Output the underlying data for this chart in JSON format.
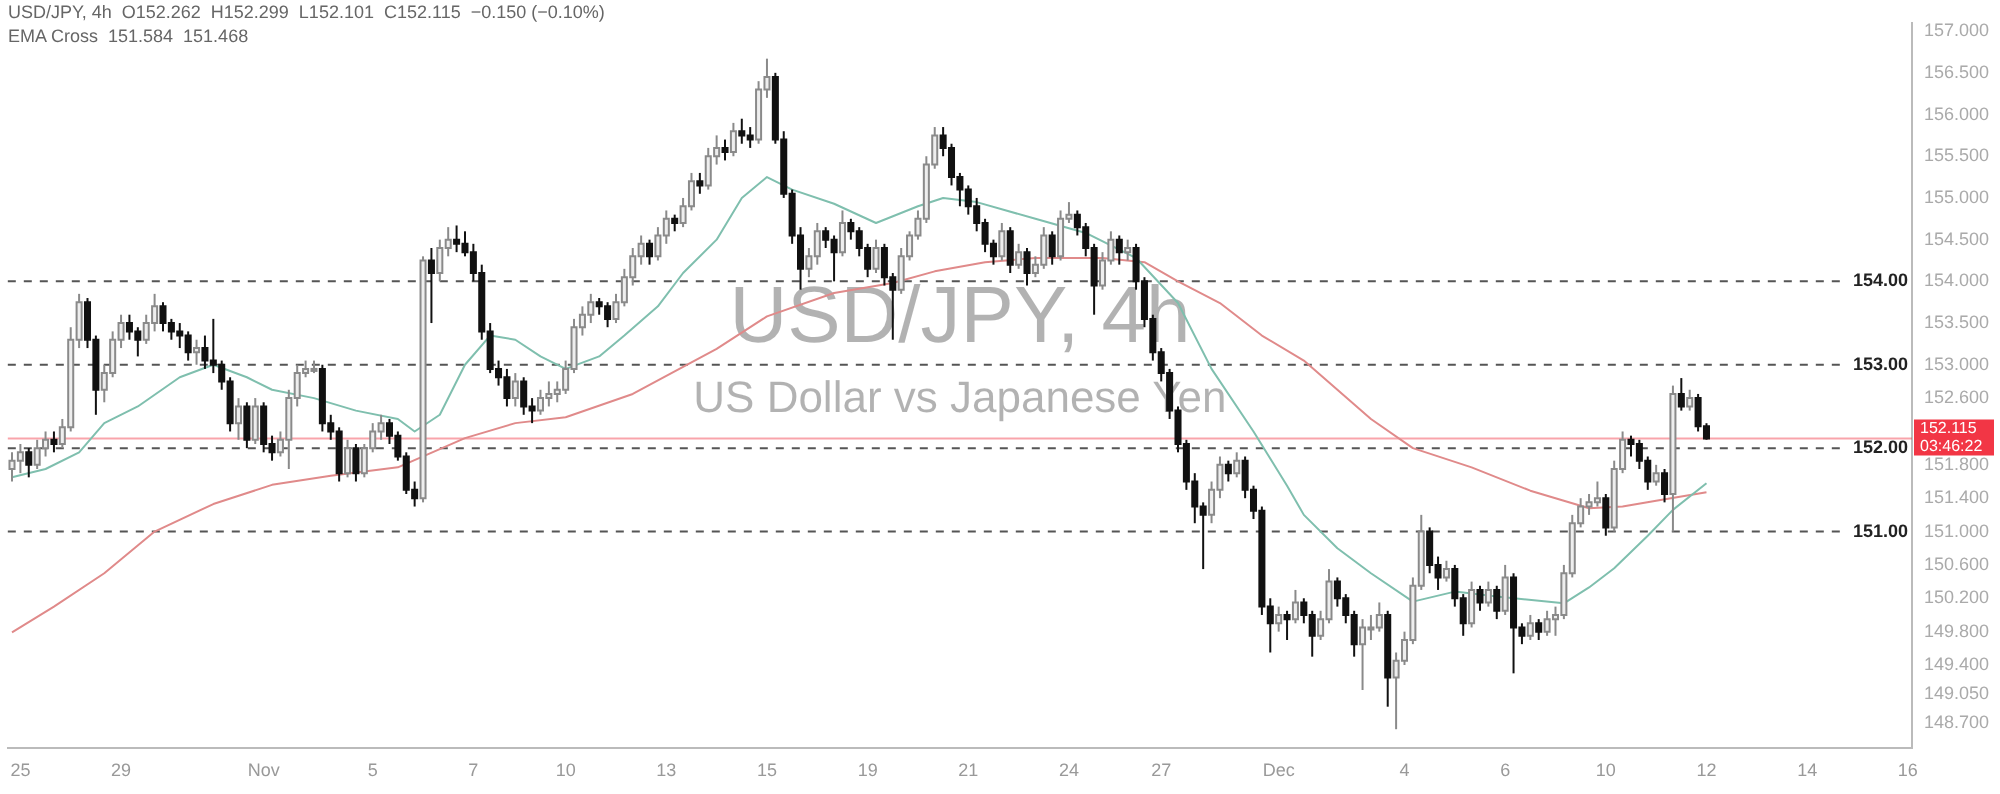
{
  "chart_data": {
    "type": "candlestick",
    "title": "USD/JPY, 4h",
    "subtitle": "US Dollar vs Japanese Yen",
    "annotations": [
      "USD/JPY, 4h  O152.262  H152.299  L152.101  C152.115  −0.150 (−0.10%)",
      "EMA Cross  151.584  151.468",
      "03:46:22"
    ],
    "categories": [
      null,
      "25",
      null,
      null,
      null,
      null,
      null,
      null,
      null,
      null,
      null,
      null,
      null,
      "29",
      null,
      null,
      null,
      null,
      null,
      null,
      null,
      null,
      null,
      null,
      null,
      null,
      null,
      null,
      null,
      null,
      "Nov",
      null,
      null,
      null,
      null,
      null,
      null,
      null,
      null,
      null,
      null,
      null,
      null,
      "5",
      null,
      null,
      null,
      null,
      null,
      null,
      null,
      null,
      null,
      null,
      null,
      "7",
      null,
      null,
      null,
      null,
      null,
      null,
      null,
      null,
      null,
      null,
      "10",
      null,
      null,
      null,
      null,
      null,
      null,
      null,
      null,
      null,
      null,
      null,
      "13",
      null,
      null,
      null,
      null,
      null,
      null,
      null,
      null,
      null,
      null,
      null,
      "15",
      null,
      null,
      null,
      null,
      null,
      null,
      null,
      null,
      null,
      null,
      null,
      "19",
      null,
      null,
      null,
      null,
      null,
      null,
      null,
      null,
      null,
      null,
      null,
      "21",
      null,
      null,
      null,
      null,
      null,
      null,
      null,
      null,
      null,
      null,
      null,
      "24",
      null,
      null,
      null,
      null,
      null,
      null,
      null,
      null,
      null,
      null,
      "27",
      null,
      null,
      null,
      null,
      null,
      null,
      null,
      null,
      null,
      null,
      null,
      null,
      null,
      "Dec",
      null,
      null,
      null,
      null,
      null,
      null,
      null,
      null,
      null,
      null,
      null,
      null,
      null,
      null,
      "4",
      null,
      null,
      null,
      null,
      null,
      null,
      null,
      null,
      null,
      null,
      null,
      "6",
      null,
      null,
      null,
      null,
      null,
      null,
      null,
      null,
      null,
      null,
      null,
      "10",
      null,
      null,
      null,
      null,
      null,
      null,
      null,
      null,
      null,
      null,
      null,
      "12",
      null,
      null,
      null,
      null,
      null,
      null,
      null,
      null,
      null,
      null,
      null,
      "14",
      null,
      null,
      null,
      null,
      null,
      null,
      null,
      null,
      null,
      null,
      null,
      "16"
    ],
    "ohlc": [
      [
        151.75,
        151.95,
        151.6,
        151.85
      ],
      [
        151.85,
        152.05,
        151.7,
        151.95
      ],
      [
        151.95,
        152.0,
        151.65,
        151.8
      ],
      [
        151.8,
        152.1,
        151.75,
        152.0
      ],
      [
        152.0,
        152.2,
        151.9,
        152.1
      ],
      [
        152.1,
        152.2,
        151.95,
        152.05
      ],
      [
        152.05,
        152.35,
        152.0,
        152.25
      ],
      [
        152.25,
        153.45,
        152.2,
        153.3
      ],
      [
        153.3,
        153.85,
        153.2,
        153.75
      ],
      [
        153.75,
        153.8,
        153.2,
        153.3
      ],
      [
        153.3,
        153.35,
        152.4,
        152.7
      ],
      [
        152.7,
        153.0,
        152.55,
        152.9
      ],
      [
        152.9,
        153.4,
        152.85,
        153.3
      ],
      [
        153.3,
        153.6,
        153.2,
        153.5
      ],
      [
        153.5,
        153.6,
        153.3,
        153.4
      ],
      [
        153.4,
        153.45,
        153.1,
        153.3
      ],
      [
        153.3,
        153.6,
        153.25,
        153.5
      ],
      [
        153.5,
        153.85,
        153.4,
        153.7
      ],
      [
        153.7,
        153.75,
        153.4,
        153.5
      ],
      [
        153.5,
        153.55,
        153.3,
        153.4
      ],
      [
        153.4,
        153.5,
        153.2,
        153.35
      ],
      [
        153.35,
        153.4,
        153.05,
        153.15
      ],
      [
        153.15,
        153.3,
        153.0,
        153.2
      ],
      [
        153.2,
        153.35,
        152.95,
        153.05
      ],
      [
        153.05,
        153.55,
        152.9,
        153.0
      ],
      [
        153.0,
        153.05,
        152.7,
        152.8
      ],
      [
        152.8,
        152.85,
        152.2,
        152.3
      ],
      [
        152.3,
        152.6,
        152.1,
        152.5
      ],
      [
        152.5,
        152.55,
        152.0,
        152.1
      ],
      [
        152.1,
        152.6,
        152.05,
        152.5
      ],
      [
        152.5,
        152.55,
        151.95,
        152.05
      ],
      [
        152.05,
        152.15,
        151.85,
        151.95
      ],
      [
        151.95,
        152.2,
        151.9,
        152.1
      ],
      [
        152.1,
        152.7,
        151.75,
        152.6
      ],
      [
        152.6,
        153.0,
        152.5,
        152.9
      ],
      [
        152.9,
        153.05,
        152.85,
        152.95
      ],
      [
        152.95,
        153.05,
        152.9,
        152.95
      ],
      [
        152.95,
        153.0,
        152.2,
        152.3
      ],
      [
        152.3,
        152.4,
        152.1,
        152.2
      ],
      [
        152.2,
        152.25,
        151.6,
        151.7
      ],
      [
        151.7,
        152.1,
        151.65,
        152.0
      ],
      [
        152.0,
        152.05,
        151.6,
        151.7
      ],
      [
        151.7,
        152.05,
        151.65,
        152.0
      ],
      [
        152.0,
        152.3,
        151.95,
        152.2
      ],
      [
        152.2,
        152.4,
        152.1,
        152.3
      ],
      [
        152.3,
        152.35,
        152.05,
        152.15
      ],
      [
        152.15,
        152.2,
        151.85,
        151.9
      ],
      [
        151.9,
        151.95,
        151.45,
        151.5
      ],
      [
        151.5,
        151.6,
        151.3,
        151.4
      ],
      [
        151.4,
        154.3,
        151.35,
        154.25
      ],
      [
        154.25,
        154.4,
        153.5,
        154.1
      ],
      [
        154.1,
        154.5,
        154.0,
        154.4
      ],
      [
        154.4,
        154.65,
        154.3,
        154.5
      ],
      [
        154.5,
        154.67,
        154.35,
        154.45
      ],
      [
        154.45,
        154.6,
        154.3,
        154.35
      ],
      [
        154.35,
        154.45,
        154.0,
        154.1
      ],
      [
        154.1,
        154.2,
        153.3,
        153.4
      ],
      [
        153.4,
        153.5,
        152.9,
        152.95
      ],
      [
        152.95,
        153.05,
        152.75,
        152.85
      ],
      [
        152.85,
        152.95,
        152.5,
        152.6
      ],
      [
        152.6,
        152.9,
        152.5,
        152.8
      ],
      [
        152.8,
        152.85,
        152.4,
        152.5
      ],
      [
        152.5,
        152.6,
        152.3,
        152.45
      ],
      [
        152.45,
        152.7,
        152.4,
        152.6
      ],
      [
        152.6,
        152.8,
        152.5,
        152.65
      ],
      [
        152.65,
        152.8,
        152.55,
        152.7
      ],
      [
        152.7,
        153.05,
        152.65,
        152.95
      ],
      [
        152.95,
        153.55,
        152.9,
        153.45
      ],
      [
        153.45,
        153.7,
        153.35,
        153.6
      ],
      [
        153.6,
        153.85,
        153.5,
        153.75
      ],
      [
        153.75,
        153.8,
        153.6,
        153.7
      ],
      [
        153.7,
        153.75,
        153.45,
        153.55
      ],
      [
        153.55,
        153.85,
        153.5,
        153.75
      ],
      [
        153.75,
        154.15,
        153.7,
        154.05
      ],
      [
        154.05,
        154.4,
        153.95,
        154.3
      ],
      [
        154.3,
        154.55,
        154.2,
        154.45
      ],
      [
        154.45,
        154.5,
        154.2,
        154.3
      ],
      [
        154.3,
        154.65,
        154.25,
        154.55
      ],
      [
        154.55,
        154.85,
        154.45,
        154.75
      ],
      [
        154.75,
        154.8,
        154.6,
        154.7
      ],
      [
        154.7,
        155.0,
        154.65,
        154.9
      ],
      [
        154.9,
        155.3,
        154.85,
        155.2
      ],
      [
        155.2,
        155.3,
        155.05,
        155.15
      ],
      [
        155.15,
        155.6,
        155.1,
        155.5
      ],
      [
        155.5,
        155.75,
        155.4,
        155.6
      ],
      [
        155.6,
        155.7,
        155.45,
        155.55
      ],
      [
        155.55,
        155.9,
        155.5,
        155.8
      ],
      [
        155.8,
        155.95,
        155.65,
        155.75
      ],
      [
        155.75,
        155.85,
        155.6,
        155.7
      ],
      [
        155.7,
        156.4,
        155.65,
        156.3
      ],
      [
        156.3,
        156.67,
        156.2,
        156.45
      ],
      [
        156.45,
        156.5,
        155.65,
        155.7
      ],
      [
        155.7,
        155.8,
        155.0,
        155.05
      ],
      [
        155.05,
        155.1,
        154.45,
        154.55
      ],
      [
        154.55,
        154.65,
        153.9,
        154.15
      ],
      [
        154.15,
        154.4,
        154.05,
        154.3
      ],
      [
        154.3,
        154.7,
        154.2,
        154.6
      ],
      [
        154.6,
        154.65,
        154.4,
        154.5
      ],
      [
        154.5,
        154.55,
        154.0,
        154.35
      ],
      [
        154.35,
        154.85,
        154.3,
        154.7
      ],
      [
        154.7,
        154.75,
        154.5,
        154.6
      ],
      [
        154.6,
        154.65,
        154.3,
        154.4
      ],
      [
        154.4,
        154.45,
        154.05,
        154.15
      ],
      [
        154.15,
        154.5,
        154.1,
        154.4
      ],
      [
        154.4,
        154.45,
        153.95,
        154.05
      ],
      [
        154.05,
        154.1,
        153.3,
        153.9
      ],
      [
        153.9,
        154.4,
        153.85,
        154.3
      ],
      [
        154.3,
        154.6,
        154.25,
        154.55
      ],
      [
        154.55,
        154.85,
        154.5,
        154.75
      ],
      [
        154.75,
        155.5,
        154.7,
        155.4
      ],
      [
        155.4,
        155.85,
        155.35,
        155.75
      ],
      [
        155.75,
        155.85,
        155.5,
        155.6
      ],
      [
        155.6,
        155.65,
        155.15,
        155.25
      ],
      [
        155.25,
        155.3,
        154.9,
        155.1
      ],
      [
        155.1,
        155.15,
        154.8,
        154.9
      ],
      [
        154.9,
        155.0,
        154.6,
        154.7
      ],
      [
        154.7,
        154.75,
        154.35,
        154.45
      ],
      [
        154.45,
        154.5,
        154.2,
        154.3
      ],
      [
        154.3,
        154.7,
        154.25,
        154.6
      ],
      [
        154.6,
        154.65,
        154.1,
        154.2
      ],
      [
        154.2,
        154.45,
        154.15,
        154.35
      ],
      [
        154.35,
        154.4,
        153.95,
        154.1
      ],
      [
        154.1,
        154.3,
        154.05,
        154.2
      ],
      [
        154.2,
        154.65,
        154.15,
        154.55
      ],
      [
        154.55,
        154.6,
        154.2,
        154.3
      ],
      [
        154.3,
        154.85,
        154.25,
        154.75
      ],
      [
        154.75,
        154.95,
        154.7,
        154.8
      ],
      [
        154.8,
        154.85,
        154.55,
        154.65
      ],
      [
        154.65,
        154.7,
        154.3,
        154.4
      ],
      [
        154.4,
        154.45,
        153.6,
        153.95
      ],
      [
        153.95,
        154.35,
        153.9,
        154.25
      ],
      [
        154.25,
        154.6,
        154.2,
        154.5
      ],
      [
        154.5,
        154.55,
        154.2,
        154.35
      ],
      [
        154.35,
        154.5,
        154.25,
        154.4
      ],
      [
        154.4,
        154.45,
        153.9,
        154.0
      ],
      [
        154.0,
        154.05,
        153.45,
        153.55
      ],
      [
        153.55,
        153.6,
        153.05,
        153.15
      ],
      [
        153.15,
        153.2,
        152.8,
        152.9
      ],
      [
        152.9,
        152.95,
        152.35,
        152.45
      ],
      [
        152.45,
        152.5,
        151.95,
        152.05
      ],
      [
        152.05,
        152.1,
        151.5,
        151.6
      ],
      [
        151.6,
        151.7,
        151.1,
        151.3
      ],
      [
        151.3,
        151.35,
        150.55,
        151.2
      ],
      [
        151.2,
        151.6,
        151.1,
        151.5
      ],
      [
        151.5,
        151.9,
        151.4,
        151.8
      ],
      [
        151.8,
        151.85,
        151.6,
        151.7
      ],
      [
        151.7,
        151.95,
        151.65,
        151.85
      ],
      [
        151.85,
        151.9,
        151.4,
        151.5
      ],
      [
        151.5,
        151.55,
        151.15,
        151.25
      ],
      [
        151.25,
        151.3,
        150.0,
        150.1
      ],
      [
        150.1,
        150.2,
        149.55,
        149.9
      ],
      [
        149.9,
        150.1,
        149.8,
        150.0
      ],
      [
        150.0,
        150.05,
        149.7,
        149.95
      ],
      [
        149.95,
        150.3,
        149.9,
        150.15
      ],
      [
        150.15,
        150.2,
        149.9,
        150.0
      ],
      [
        150.0,
        150.05,
        149.5,
        149.75
      ],
      [
        149.75,
        150.05,
        149.7,
        149.95
      ],
      [
        149.95,
        150.55,
        149.9,
        150.4
      ],
      [
        150.4,
        150.45,
        150.1,
        150.2
      ],
      [
        150.2,
        150.25,
        149.9,
        150.0
      ],
      [
        150.0,
        150.05,
        149.5,
        149.65
      ],
      [
        149.65,
        149.95,
        149.1,
        149.85
      ],
      [
        149.85,
        150.0,
        149.7,
        149.85
      ],
      [
        149.85,
        150.15,
        149.8,
        150.0
      ],
      [
        150.0,
        150.05,
        148.9,
        149.25
      ],
      [
        149.25,
        149.55,
        148.63,
        149.45
      ],
      [
        149.45,
        149.8,
        149.4,
        149.7
      ],
      [
        149.7,
        150.45,
        149.65,
        150.35
      ],
      [
        150.35,
        151.2,
        150.3,
        151.0
      ],
      [
        151.0,
        151.05,
        150.5,
        150.6
      ],
      [
        150.6,
        150.7,
        150.3,
        150.45
      ],
      [
        150.45,
        150.65,
        150.4,
        150.55
      ],
      [
        150.55,
        150.6,
        150.1,
        150.2
      ],
      [
        150.2,
        150.25,
        149.75,
        149.9
      ],
      [
        149.9,
        150.4,
        149.85,
        150.3
      ],
      [
        150.3,
        150.35,
        150.05,
        150.15
      ],
      [
        150.15,
        150.4,
        150.1,
        150.3
      ],
      [
        150.3,
        150.35,
        149.95,
        150.05
      ],
      [
        150.05,
        150.6,
        150.0,
        150.45
      ],
      [
        150.45,
        150.5,
        149.3,
        149.85
      ],
      [
        149.85,
        149.9,
        149.65,
        149.75
      ],
      [
        149.75,
        150.0,
        149.7,
        149.9
      ],
      [
        149.9,
        149.95,
        149.7,
        149.8
      ],
      [
        149.8,
        150.05,
        149.75,
        149.95
      ],
      [
        149.95,
        150.1,
        149.75,
        150.0
      ],
      [
        150.0,
        150.6,
        149.95,
        150.5
      ],
      [
        150.5,
        151.2,
        150.45,
        151.1
      ],
      [
        151.1,
        151.4,
        151.05,
        151.3
      ],
      [
        151.3,
        151.45,
        151.2,
        151.35
      ],
      [
        151.35,
        151.6,
        151.3,
        151.4
      ],
      [
        151.4,
        151.45,
        150.95,
        151.05
      ],
      [
        151.05,
        151.85,
        151.0,
        151.75
      ],
      [
        151.75,
        152.2,
        151.7,
        152.1
      ],
      [
        152.1,
        152.15,
        151.9,
        152.05
      ],
      [
        152.05,
        152.1,
        151.75,
        151.85
      ],
      [
        151.85,
        151.9,
        151.5,
        151.6
      ],
      [
        151.6,
        151.8,
        151.55,
        151.7
      ],
      [
        151.7,
        151.75,
        151.35,
        151.45
      ],
      [
        151.45,
        152.75,
        151.0,
        152.65
      ],
      [
        152.65,
        152.84,
        152.45,
        152.5
      ],
      [
        152.5,
        152.7,
        152.45,
        152.6
      ],
      [
        152.6,
        152.65,
        152.2,
        152.262
      ],
      [
        152.262,
        152.299,
        152.101,
        152.115
      ],
      null,
      null,
      null,
      null,
      null,
      null,
      null,
      null,
      null,
      null,
      null,
      null,
      null,
      null,
      null,
      null,
      null,
      null,
      null,
      null,
      null,
      null,
      null,
      null
    ],
    "series": [
      {
        "type": "line",
        "color": "#7fbfae",
        "values": [
          151.65,
          null,
          null,
          null,
          151.75,
          null,
          null,
          null,
          151.95,
          null,
          null,
          152.3,
          null,
          null,
          null,
          152.5,
          null,
          null,
          null,
          null,
          152.85,
          null,
          null,
          null,
          153.0,
          null,
          null,
          null,
          152.85,
          null,
          null,
          152.7,
          null,
          null,
          null,
          null,
          152.6,
          null,
          null,
          null,
          null,
          152.45,
          null,
          null,
          null,
          null,
          152.35,
          null,
          152.2,
          null,
          null,
          152.4,
          null,
          null,
          153.0,
          null,
          null,
          153.35,
          null,
          null,
          153.3,
          null,
          null,
          153.1,
          null,
          null,
          152.95,
          null,
          null,
          null,
          153.1,
          null,
          null,
          153.35,
          null,
          null,
          null,
          153.7,
          null,
          null,
          154.1,
          null,
          null,
          null,
          154.5,
          null,
          null,
          155.0,
          null,
          null,
          155.25,
          null,
          null,
          155.1,
          null,
          null,
          null,
          null,
          154.93,
          null,
          null,
          null,
          null,
          154.7,
          null,
          null,
          null,
          null,
          154.9,
          null,
          null,
          155.0,
          null,
          null,
          null,
          154.95,
          null,
          null,
          null,
          null,
          null,
          null,
          154.75,
          null,
          null,
          null,
          null,
          null,
          154.58,
          null,
          null,
          null,
          null,
          null,
          154.28,
          null,
          null,
          null,
          null,
          153.74,
          null,
          null,
          null,
          152.95,
          null,
          null,
          null,
          null,
          152.2,
          null,
          null,
          null,
          151.55,
          null,
          151.2,
          null,
          null,
          null,
          150.8,
          null,
          null,
          null,
          150.5,
          null,
          null,
          null,
          null,
          150.16,
          null,
          null,
          null,
          null,
          150.28,
          null,
          null,
          null,
          null,
          150.22,
          null,
          null,
          null,
          null,
          null,
          null,
          null,
          150.14,
          null,
          null,
          150.33,
          null,
          null,
          150.56,
          null,
          null,
          null,
          150.95,
          null,
          null,
          151.26,
          null,
          null,
          null,
          151.58,
          null,
          null,
          null,
          null,
          null,
          null,
          null,
          null,
          null,
          null,
          null,
          null,
          null,
          null,
          null,
          null,
          null,
          null,
          null,
          null,
          null,
          null,
          null,
          null
        ]
      },
      {
        "type": "line",
        "color": "#e08a8a",
        "values": [
          149.79,
          null,
          null,
          null,
          null,
          150.1,
          null,
          null,
          null,
          null,
          null,
          150.5,
          null,
          null,
          null,
          null,
          null,
          151.0,
          null,
          null,
          null,
          null,
          null,
          null,
          151.33,
          null,
          null,
          null,
          null,
          null,
          null,
          151.56,
          null,
          null,
          null,
          null,
          null,
          null,
          151.67,
          null,
          null,
          null,
          null,
          null,
          null,
          null,
          151.77,
          null,
          null,
          null,
          null,
          null,
          null,
          null,
          152.12,
          null,
          null,
          null,
          null,
          null,
          152.3,
          null,
          null,
          null,
          null,
          null,
          152.37,
          null,
          null,
          null,
          null,
          null,
          null,
          null,
          152.65,
          null,
          null,
          null,
          null,
          null,
          null,
          null,
          null,
          null,
          153.19,
          null,
          null,
          null,
          null,
          null,
          153.58,
          null,
          null,
          null,
          null,
          null,
          null,
          null,
          153.86,
          null,
          null,
          null,
          null,
          null,
          null,
          153.98,
          null,
          null,
          null,
          null,
          154.12,
          null,
          null,
          null,
          null,
          null,
          154.23,
          null,
          null,
          null,
          null,
          null,
          154.28,
          null,
          null,
          null,
          null,
          null,
          null,
          null,
          154.28,
          null,
          null,
          null,
          null,
          154.23,
          null,
          null,
          null,
          154.0,
          null,
          null,
          null,
          null,
          153.74,
          null,
          null,
          null,
          null,
          153.35,
          null,
          null,
          null,
          null,
          153.05,
          null,
          null,
          null,
          null,
          null,
          null,
          null,
          152.35,
          null,
          null,
          null,
          null,
          152.0,
          null,
          null,
          null,
          null,
          null,
          null,
          151.77,
          null,
          null,
          null,
          null,
          null,
          null,
          151.49,
          null,
          null,
          null,
          null,
          null,
          null,
          151.28,
          null,
          null,
          null,
          151.3,
          null,
          null,
          null,
          151.37,
          null,
          null,
          null,
          null,
          null,
          151.47,
          null,
          null,
          null,
          null,
          null,
          null,
          null,
          null,
          null,
          null,
          null,
          null,
          null,
          null,
          null,
          null,
          null,
          null,
          null,
          null,
          null,
          null,
          null,
          null
        ]
      }
    ],
    "ylim": [
      148.4,
      157.1
    ],
    "yticks": [
      {
        "value": 157,
        "label": "157.000"
      },
      {
        "value": 156.5,
        "label": "156.500"
      },
      {
        "value": 156,
        "label": "156.000"
      },
      {
        "value": 155.5,
        "label": "155.500"
      },
      {
        "value": 155,
        "label": "155.000"
      },
      {
        "value": 154.5,
        "label": "154.500"
      },
      {
        "value": 154,
        "label": "154.000"
      },
      {
        "value": 153.5,
        "label": "153.500"
      },
      {
        "value": 153,
        "label": "153.000"
      },
      {
        "value": 152.6,
        "label": "152.600"
      },
      {
        "value": 151.8,
        "label": "151.800"
      },
      {
        "value": 151.4,
        "label": "151.400"
      },
      {
        "value": 151,
        "label": "151.000"
      },
      {
        "value": 150.6,
        "label": "150.600"
      },
      {
        "value": 150.2,
        "label": "150.200"
      },
      {
        "value": 149.8,
        "label": "149.800"
      },
      {
        "value": 149.4,
        "label": "149.400"
      },
      {
        "value": 149.05,
        "label": "149.050"
      },
      {
        "value": 148.7,
        "label": "148.700"
      }
    ],
    "ref_lines": [
      {
        "axis": "y",
        "value": 154,
        "label": "154.00",
        "color": "#555555",
        "line_style": "dashed"
      },
      {
        "axis": "y",
        "value": 153,
        "label": "153.00",
        "color": "#555555",
        "line_style": "dashed"
      },
      {
        "axis": "y",
        "value": 152,
        "label": "152.00",
        "color": "#555555",
        "line_style": "dashed"
      },
      {
        "axis": "y",
        "value": 151,
        "label": "151.00",
        "color": "#555555",
        "line_style": "dashed"
      },
      {
        "axis": "y",
        "value": 152.115,
        "label": "152.115",
        "color": "#f23645",
        "line_style": "solid"
      }
    ],
    "grid": false,
    "legend": false
  }
}
